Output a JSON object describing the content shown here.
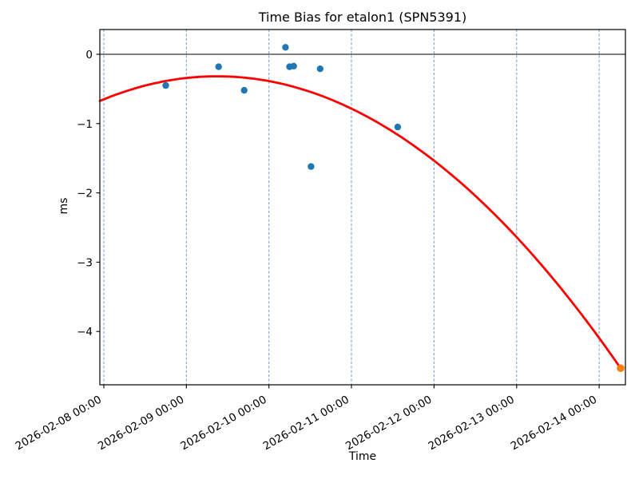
{
  "chart_data": {
    "type": "scatter",
    "title": "Time Bias for etalon1 (SPN5391)",
    "xlabel": "Time",
    "ylabel": "ms",
    "x_tick_labels": [
      "2026-02-08 00:00",
      "2026-02-09 00:00",
      "2026-02-10 00:00",
      "2026-02-11 00:00",
      "2026-02-12 00:00",
      "2026-02-13 00:00",
      "2026-02-14 00:00"
    ],
    "x_tick_days": [
      0,
      1,
      2,
      3,
      4,
      5,
      6
    ],
    "y_ticks": [
      0,
      -1,
      -2,
      -3,
      -4
    ],
    "y_tick_labels": [
      "0",
      "−1",
      "−2",
      "−3",
      "−4"
    ],
    "xlim_days": [
      -0.048,
      6.31
    ],
    "ylim_ms": [
      0.35,
      -4.77
    ],
    "grid": {
      "axis": "x",
      "linestyle": "dashed",
      "color": "#6f9ecf"
    },
    "zero_line": {
      "y_ms": 0,
      "color": "#000000"
    },
    "series": [
      {
        "name": "time-bias-observations",
        "marker": "circle",
        "color": "#1f77b4",
        "radius": 4.2,
        "points": [
          {
            "x_days": 0.75,
            "y_ms": -0.45
          },
          {
            "x_days": 1.39,
            "y_ms": -0.18
          },
          {
            "x_days": 1.7,
            "y_ms": -0.52
          },
          {
            "x_days": 2.2,
            "y_ms": 0.1
          },
          {
            "x_days": 2.25,
            "y_ms": -0.18
          },
          {
            "x_days": 2.3,
            "y_ms": -0.17
          },
          {
            "x_days": 2.51,
            "y_ms": -1.62
          },
          {
            "x_days": 2.62,
            "y_ms": -0.21
          },
          {
            "x_days": 3.56,
            "y_ms": -1.05
          }
        ]
      },
      {
        "name": "extrapolated-point",
        "marker": "circle",
        "color": "#ff7f0e",
        "radius": 4.8,
        "points": [
          {
            "x_days": 6.26,
            "y_ms": -4.53
          }
        ]
      }
    ],
    "fit_curve": {
      "name": "quadratic-fit",
      "color": "#ff0000",
      "coeffs": {
        "c2": -0.1763,
        "c1": 0.4838,
        "c0": -0.6494
      },
      "x_range_days": [
        -0.048,
        6.26
      ]
    }
  }
}
